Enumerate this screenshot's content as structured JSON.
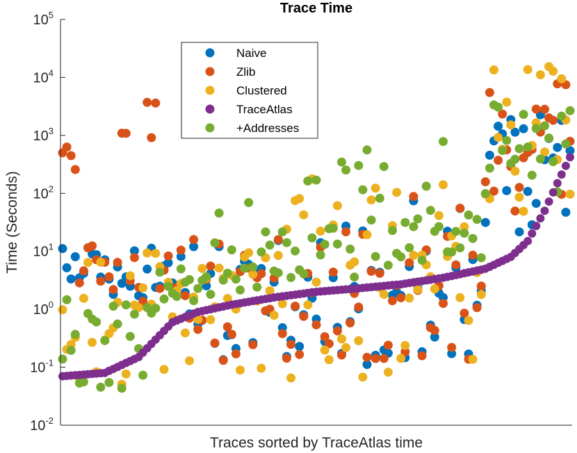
{
  "chart_data": {
    "type": "scatter",
    "title": "Trace Time",
    "xlabel": "Traces sorted by TraceAtlas time",
    "ylabel": "Time (Seconds)",
    "yscale": "log",
    "ylim": [
      0.01,
      100000
    ],
    "xlim": [
      0,
      120
    ],
    "yticks": [
      {
        "base": "10",
        "exp": "-2",
        "value": 0.01
      },
      {
        "base": "10",
        "exp": "-1",
        "value": 0.1
      },
      {
        "base": "10",
        "exp": "0",
        "value": 1
      },
      {
        "base": "10",
        "exp": "1",
        "value": 10
      },
      {
        "base": "10",
        "exp": "2",
        "value": 100
      },
      {
        "base": "10",
        "exp": "3",
        "value": 1000
      },
      {
        "base": "10",
        "exp": "4",
        "value": 10000
      },
      {
        "base": "10",
        "exp": "5",
        "value": 100000
      }
    ],
    "legend_position": "top-left",
    "series": [
      {
        "name": "Naive",
        "color": "#0072BD"
      },
      {
        "name": "Zlib",
        "color": "#D95319"
      },
      {
        "name": "Clustered",
        "color": "#EDB120"
      },
      {
        "name": "TraceAtlas",
        "color": "#7E2F8E"
      },
      {
        "name": "+Addresses",
        "color": "#77AC30"
      }
    ],
    "n_traces": 121,
    "traceatlas_anchors": [
      [
        0,
        0.07
      ],
      [
        10,
        0.08
      ],
      [
        18,
        0.15
      ],
      [
        22,
        0.3
      ],
      [
        26,
        0.6
      ],
      [
        32,
        0.9
      ],
      [
        40,
        1.2
      ],
      [
        50,
        1.6
      ],
      [
        60,
        2.0
      ],
      [
        70,
        2.3
      ],
      [
        80,
        2.7
      ],
      [
        90,
        3.5
      ],
      [
        100,
        5.0
      ],
      [
        106,
        8.0
      ],
      [
        110,
        15
      ],
      [
        114,
        50
      ],
      [
        117,
        150
      ],
      [
        120,
        420
      ]
    ]
  }
}
